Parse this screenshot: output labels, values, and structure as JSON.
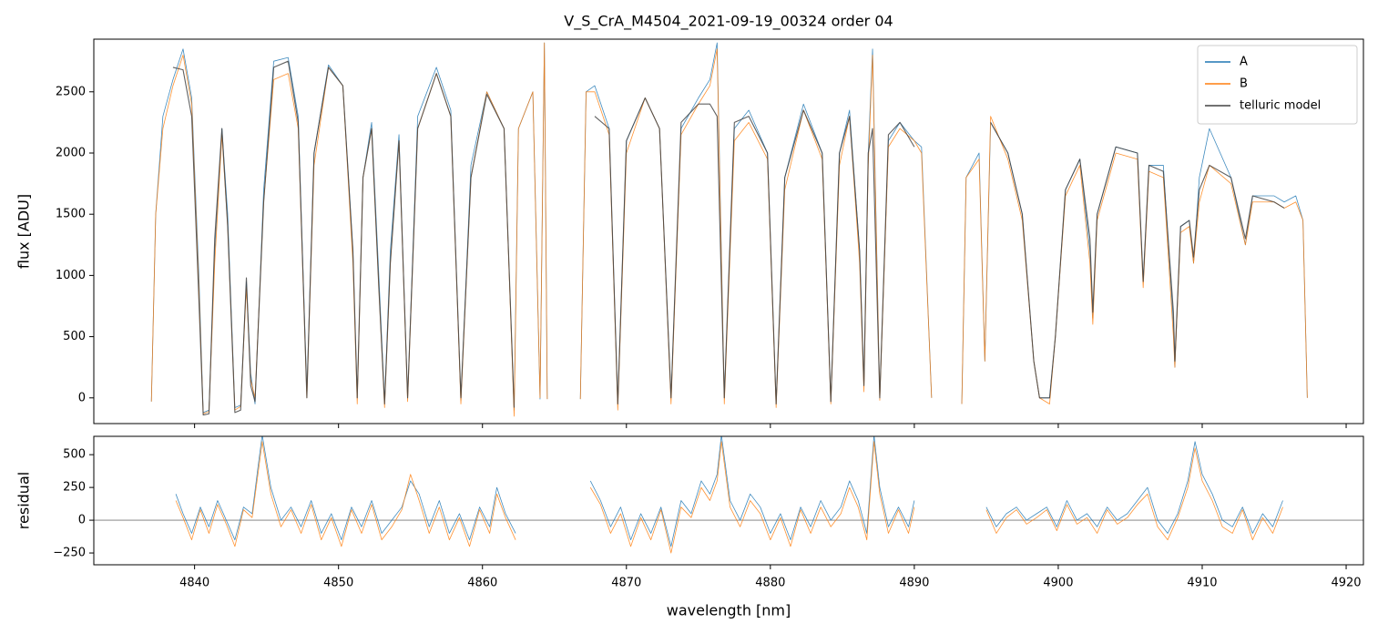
{
  "chart_data": [
    {
      "type": "line",
      "title": "V_S_CrA_M4504_2021-09-19_00324  order 04",
      "ylabel": "flux [ADU]",
      "xlim": [
        4833,
        4921.2
      ],
      "ylim": [
        -210,
        2930
      ],
      "yticks": [
        0,
        500,
        1000,
        1500,
        2000,
        2500
      ],
      "legend": "upper right",
      "x": [
        4837.0,
        4837.3,
        4837.8,
        4838.5,
        4839.2,
        4839.8,
        4840.3,
        4840.6,
        4841.0,
        4841.4,
        4841.9,
        4842.3,
        4842.8,
        4843.2,
        4843.6,
        4843.9,
        4844.2,
        4844.8,
        4845.5,
        4846.5,
        4847.2,
        4847.8,
        4848.3,
        4849.3,
        4850.3,
        4851.0,
        4851.3,
        4851.7,
        4852.3,
        4852.8,
        4853.2,
        4853.6,
        4854.2,
        4854.8,
        4855.5,
        4856.8,
        4857.8,
        4858.5,
        4859.2,
        4860.3,
        4861.5,
        4862.2,
        4862.5,
        4863.5,
        4864.0,
        4864.3,
        4864.5,
        4865.5,
        4866.8,
        4867.2,
        4867.8,
        4868.8,
        4869.4,
        4870.0,
        4871.3,
        4872.3,
        4873.1,
        4873.8,
        4875.0,
        4875.8,
        4876.3,
        4876.8,
        4877.5,
        4878.5,
        4879.8,
        4880.4,
        4881.0,
        4882.3,
        4883.6,
        4884.2,
        4884.8,
        4885.5,
        4886.2,
        4886.5,
        4886.8,
        4887.1,
        4887.6,
        4888.2,
        4889.0,
        4890.0,
        4890.5,
        4891.2,
        4892.3,
        4893.3,
        4893.6,
        4894.5,
        4894.9,
        4895.3,
        4896.5,
        4897.5,
        4898.3,
        4898.7,
        4899.4,
        4899.8,
        4900.5,
        4901.5,
        4902.2,
        4902.4,
        4902.7,
        4904.0,
        4905.5,
        4905.9,
        4906.3,
        4907.3,
        4908.0,
        4908.1,
        4908.5,
        4909.1,
        4909.4,
        4909.8,
        4910.5,
        4912.0,
        4913.0,
        4913.5,
        4915.0,
        4915.7,
        4916.5,
        4917.0,
        4917.3
      ],
      "series": [
        {
          "name": "A",
          "color": "#1f77b4",
          "values": [
            -30,
            1500,
            2300,
            2600,
            2850,
            2450,
            1000,
            -120,
            -100,
            1200,
            2200,
            1500,
            -80,
            -60,
            950,
            200,
            -50,
            1700,
            2750,
            2780,
            2300,
            50,
            2000,
            2720,
            2550,
            1200,
            0,
            1800,
            2250,
            1000,
            -30,
            1200,
            2150,
            0,
            2300,
            2700,
            2350,
            -20,
            1900,
            2500,
            2200,
            -100,
            2200,
            2500,
            -10,
            2900,
            -10,
            null,
            -10,
            2500,
            2550,
            2200,
            -50,
            2100,
            2450,
            2200,
            0,
            2200,
            2450,
            2600,
            2900,
            0,
            2200,
            2350,
            2000,
            -50,
            1800,
            2400,
            2000,
            -30,
            2000,
            2350,
            1200,
            100,
            2000,
            2850,
            0,
            2100,
            2250,
            2100,
            2050,
            0,
            null,
            -50,
            1800,
            2000,
            300,
            2250,
            2000,
            1500,
            300,
            0,
            0,
            500,
            1700,
            1950,
            1200,
            650,
            1500,
            2050,
            2000,
            950,
            1900,
            1900,
            600,
            250,
            1400,
            1450,
            1100,
            1800,
            2200,
            1800,
            1250,
            1650,
            1650,
            1600,
            1650,
            1450,
            0
          ]
        },
        {
          "name": "B",
          "color": "#ff7f0e",
          "values": [
            -30,
            1500,
            2200,
            2550,
            2800,
            2400,
            900,
            -130,
            -110,
            1100,
            2150,
            1400,
            -100,
            -70,
            900,
            150,
            0,
            1600,
            2600,
            2650,
            2200,
            0,
            1900,
            2700,
            2550,
            1100,
            -50,
            1800,
            2200,
            900,
            -80,
            1100,
            2100,
            -30,
            2200,
            2650,
            2300,
            -50,
            1800,
            2500,
            2200,
            -150,
            2200,
            2500,
            0,
            2900,
            -10,
            null,
            -10,
            2500,
            2500,
            2150,
            -100,
            2000,
            2450,
            2200,
            -50,
            2150,
            2400,
            2550,
            2850,
            -50,
            2100,
            2250,
            1950,
            -80,
            1700,
            2350,
            1950,
            -50,
            1900,
            2300,
            1100,
            50,
            1900,
            2800,
            -20,
            2050,
            2200,
            2100,
            2000,
            0,
            null,
            -50,
            1800,
            1950,
            300,
            2300,
            1950,
            1450,
            300,
            0,
            -50,
            500,
            1650,
            1900,
            1100,
            600,
            1450,
            2000,
            1950,
            900,
            1850,
            1800,
            500,
            250,
            1350,
            1400,
            1100,
            1600,
            1900,
            1750,
            1250,
            1600,
            1600,
            1550,
            1600,
            1450,
            0
          ]
        },
        {
          "name": "telluric model",
          "color": "#444444",
          "values": [
            null,
            null,
            null,
            2700,
            2680,
            2300,
            800,
            -140,
            -130,
            1300,
            2200,
            1400,
            -120,
            -100,
            980,
            100,
            -30,
            1600,
            2700,
            2750,
            2250,
            0,
            2000,
            2700,
            2550,
            1200,
            0,
            1800,
            2200,
            900,
            -50,
            1100,
            2100,
            0,
            2200,
            2650,
            2300,
            0,
            1800,
            2480,
            2200,
            -80,
            null,
            null,
            null,
            null,
            null,
            null,
            null,
            null,
            2300,
            2200,
            -50,
            2100,
            2450,
            2200,
            0,
            2250,
            2400,
            2400,
            2300,
            0,
            2250,
            2300,
            2000,
            -50,
            1800,
            2350,
            2000,
            -30,
            2000,
            2300,
            1200,
            100,
            2000,
            2200,
            0,
            2150,
            2250,
            2050,
            null,
            null,
            null,
            null,
            null,
            null,
            null,
            2250,
            2000,
            1500,
            300,
            0,
            0,
            500,
            1700,
            1950,
            1300,
            700,
            1500,
            2050,
            2000,
            950,
            1900,
            1850,
            700,
            300,
            1400,
            1450,
            1150,
            1700,
            1900,
            1800,
            1300,
            1650,
            1600,
            1550,
            null,
            null,
            null
          ]
        }
      ]
    },
    {
      "type": "line",
      "xlabel": "wavelength [nm]",
      "ylabel": "residual",
      "xlim": [
        4833,
        4921.2
      ],
      "ylim": [
        -340,
        640
      ],
      "xticks": [
        4840,
        4850,
        4860,
        4870,
        4880,
        4890,
        4900,
        4910,
        4920
      ],
      "yticks": [
        {
          "value": -250,
          "label": "−250"
        },
        0,
        250,
        500
      ],
      "hline": 0,
      "x": [
        4838.7,
        4839.2,
        4839.8,
        4840.4,
        4841,
        4841.6,
        4842.2,
        4842.8,
        4843.4,
        4844,
        4844.4,
        4844.7,
        4845.3,
        4846,
        4846.7,
        4847.4,
        4848.1,
        4848.8,
        4849.5,
        4850.2,
        4850.9,
        4851.6,
        4852.3,
        4853,
        4853.7,
        4854.4,
        4855,
        4855.6,
        4856.3,
        4857,
        4857.7,
        4858.4,
        4859.1,
        4859.8,
        4860.5,
        4861,
        4861.6,
        4862.3,
        4865,
        4867.5,
        4868.2,
        4868.9,
        4869.6,
        4870.3,
        4871,
        4871.7,
        4872.4,
        4873.1,
        4873.8,
        4874.5,
        4875.2,
        4875.8,
        4876.3,
        4876.6,
        4877.2,
        4877.9,
        4878.6,
        4879.3,
        4880,
        4880.7,
        4881.4,
        4882.1,
        4882.8,
        4883.5,
        4884.2,
        4884.9,
        4885.5,
        4886.1,
        4886.7,
        4887.2,
        4887.6,
        4888.2,
        4888.9,
        4889.6,
        4890,
        4892,
        4895,
        4895.7,
        4896.4,
        4897.1,
        4897.8,
        4898.5,
        4899.2,
        4899.9,
        4900.6,
        4901.3,
        4902,
        4902.7,
        4903.4,
        4904.1,
        4904.8,
        4905.5,
        4906.2,
        4906.9,
        4907.6,
        4908.3,
        4909,
        4909.5,
        4910,
        4910.7,
        4911.4,
        4912.1,
        4912.8,
        4913.5,
        4914.2,
        4914.9,
        4915.6
      ],
      "series": [
        {
          "name": "A",
          "color": "#1f77b4",
          "values": [
            200,
            50,
            -100,
            100,
            -50,
            150,
            0,
            -150,
            100,
            50,
            400,
            650,
            250,
            0,
            100,
            -50,
            150,
            -100,
            50,
            -150,
            100,
            -50,
            150,
            -100,
            0,
            100,
            300,
            200,
            -50,
            150,
            -100,
            50,
            -150,
            100,
            -50,
            250,
            50,
            -100,
            null,
            300,
            150,
            -50,
            100,
            -150,
            50,
            -100,
            100,
            -200,
            150,
            50,
            300,
            200,
            350,
            650,
            150,
            0,
            200,
            100,
            -100,
            50,
            -150,
            100,
            -50,
            150,
            0,
            100,
            300,
            150,
            -100,
            650,
            250,
            -50,
            100,
            -50,
            150,
            null,
            100,
            -50,
            50,
            100,
            0,
            50,
            100,
            -50,
            150,
            0,
            50,
            -50,
            100,
            0,
            50,
            150,
            250,
            0,
            -100,
            50,
            300,
            600,
            350,
            200,
            0,
            -50,
            100,
            -100,
            50,
            -50,
            150
          ]
        },
        {
          "name": "B",
          "color": "#ff7f0e",
          "values": [
            150,
            20,
            -150,
            80,
            -100,
            120,
            -30,
            -200,
            80,
            20,
            350,
            600,
            200,
            -50,
            80,
            -100,
            120,
            -150,
            20,
            -200,
            80,
            -100,
            120,
            -150,
            -50,
            80,
            350,
            150,
            -100,
            100,
            -150,
            20,
            -200,
            80,
            -100,
            200,
            20,
            -150,
            null,
            250,
            120,
            -100,
            50,
            -200,
            20,
            -150,
            80,
            -250,
            100,
            20,
            250,
            150,
            300,
            600,
            100,
            -50,
            150,
            50,
            -150,
            20,
            -200,
            80,
            -100,
            100,
            -50,
            50,
            250,
            100,
            -150,
            600,
            200,
            -100,
            80,
            -100,
            100,
            null,
            80,
            -100,
            20,
            80,
            -30,
            20,
            80,
            -80,
            120,
            -30,
            20,
            -100,
            80,
            -30,
            20,
            120,
            200,
            -50,
            -150,
            20,
            250,
            550,
            300,
            150,
            -50,
            -100,
            80,
            -150,
            20,
            -100,
            100
          ]
        }
      ]
    }
  ]
}
